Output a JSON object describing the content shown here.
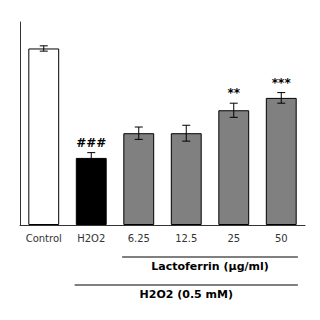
{
  "chart_data": {
    "type": "bar",
    "categories": [
      "Control",
      "H2O2",
      "6.25",
      "12.5",
      "25",
      "50"
    ],
    "values": [
      100,
      38,
      52,
      52,
      65,
      72
    ],
    "errors": [
      1.5,
      3.0,
      3.5,
      4.5,
      4.0,
      3.0
    ],
    "colors": [
      "white",
      "black",
      "#808080",
      "#808080",
      "#808080",
      "#808080"
    ],
    "ylim": [
      0,
      115
    ],
    "tick_labels": "x",
    "grid": false,
    "annotations": [
      {
        "category": "H2O2",
        "text": "###"
      },
      {
        "category": "25",
        "text": "**"
      },
      {
        "category": "50",
        "text": "***"
      }
    ],
    "group_labels": [
      {
        "text": "Lactoferrin (μg/ml)",
        "from": "6.25",
        "to": "50"
      },
      {
        "text": "H2O2 (0.5 mM)",
        "from": "H2O2",
        "to": "50"
      }
    ]
  }
}
